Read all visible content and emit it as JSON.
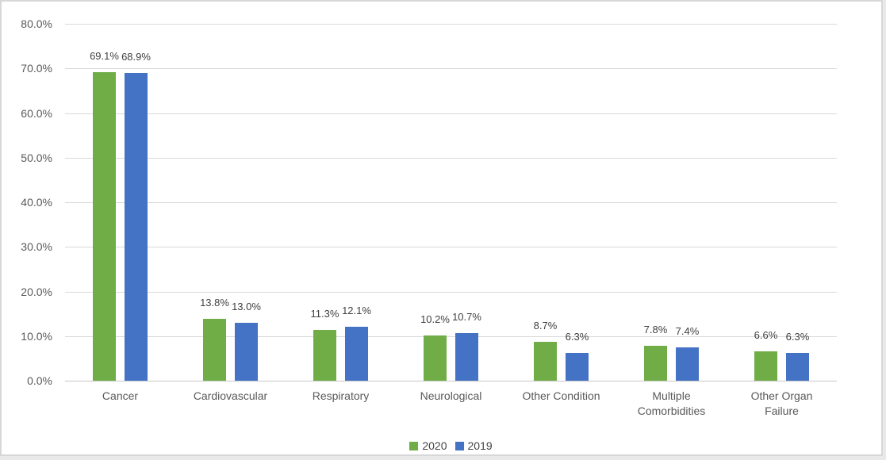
{
  "chart_data": {
    "type": "bar",
    "title": "",
    "xlabel": "",
    "ylabel": "",
    "categories": [
      "Cancer",
      "Cardiovascular",
      "Respiratory",
      "Neurological",
      "Other Condition",
      "Multiple Comorbidities",
      "Other Organ Failure"
    ],
    "series": [
      {
        "name": "2020",
        "color": "#70AD47",
        "values": [
          69.1,
          13.8,
          11.3,
          10.2,
          8.7,
          7.8,
          6.6
        ],
        "labels": [
          "69.1%",
          "13.8%",
          "11.3%",
          "10.2%",
          "8.7%",
          "7.8%",
          "6.6%"
        ]
      },
      {
        "name": "2019",
        "color": "#4472C4",
        "values": [
          68.9,
          13.0,
          12.1,
          10.7,
          6.3,
          7.4,
          6.3
        ],
        "labels": [
          "68.9%",
          "13.0%",
          "12.1%",
          "10.7%",
          "6.3%",
          "7.4%",
          "6.3%"
        ]
      }
    ],
    "y_axis": {
      "min": 0,
      "max": 80,
      "tick_step": 10,
      "tick_labels": [
        "0.0%",
        "10.0%",
        "20.0%",
        "30.0%",
        "40.0%",
        "50.0%",
        "60.0%",
        "70.0%",
        "80.0%"
      ]
    },
    "ylim": [
      0,
      80
    ],
    "grid": true,
    "legend": {
      "position": "bottom",
      "entries": [
        "2020",
        "2019"
      ]
    },
    "colors": {
      "gridline": "#d9d9d9",
      "axis_line": "#c6c6c6",
      "tick_text": "#595959",
      "category_text": "#595959",
      "value_label_text": "#404040",
      "legend_text": "#444444",
      "chart_border": "#d7d7d7",
      "background": "#ffffff"
    }
  }
}
